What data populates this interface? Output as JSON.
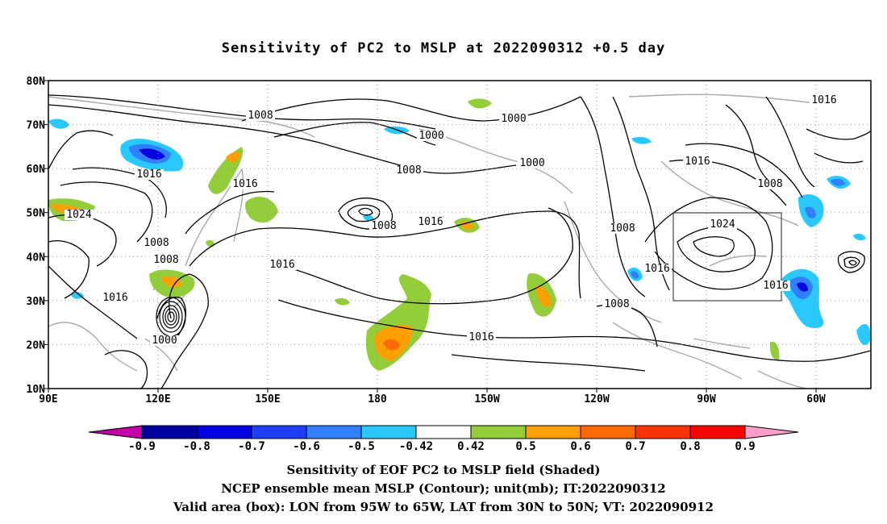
{
  "title": "Sensitivity of PC2 to MSLP at 2022090312 +0.5 day",
  "axes": {
    "lat_labels": [
      "80N",
      "70N",
      "60N",
      "50N",
      "40N",
      "30N",
      "20N",
      "10N"
    ],
    "lon_labels": [
      "90E",
      "120E",
      "150E",
      "180",
      "150W",
      "120W",
      "90W",
      "60W"
    ]
  },
  "contour_labels": [
    "1008",
    "1000",
    "1000",
    "1000",
    "1008",
    "1008",
    "1016",
    "1016",
    "1024",
    "1016",
    "1008",
    "1016",
    "1016",
    "1008",
    "1016",
    "1024",
    "1016",
    "1008",
    "1016",
    "1008",
    "1008",
    "1016",
    "1000",
    "1016"
  ],
  "colorbar": {
    "labels": [
      "-0.9",
      "-0.8",
      "-0.7",
      "-0.6",
      "-0.5",
      "-0.42",
      "0.42",
      "0.5",
      "0.6",
      "0.7",
      "0.8",
      "0.9"
    ],
    "colors": [
      "#c400a8",
      "#0000a0",
      "#0000e0",
      "#1f3fff",
      "#2f7fff",
      "#29c8ff",
      "#ffffff",
      "#93cd3a",
      "#ff9f00",
      "#ff6a00",
      "#ff3300",
      "#ff0000",
      "#ff9fc8"
    ]
  },
  "shading_colors": {
    "neg_light": "#29c8ff",
    "neg_mid": "#2f7fff",
    "neg_dark": "#0000e0",
    "pos_light": "#93cd3a",
    "pos_mid": "#ff9f00",
    "pos_dark": "#ff6a00"
  },
  "captions": {
    "line1": "Sensitivity of EOF PC2 to MSLP field (Shaded)",
    "line2": "NCEP ensemble mean MSLP (Contour); unit(mb); IT:2022090312",
    "line3": "Valid area (box): LON from 95W to 65W, LAT from 30N to 50N; VT: 2022090912"
  },
  "valid_box": {
    "lon_min": -95,
    "lon_max": -65,
    "lat_min": 30,
    "lat_max": 50
  }
}
